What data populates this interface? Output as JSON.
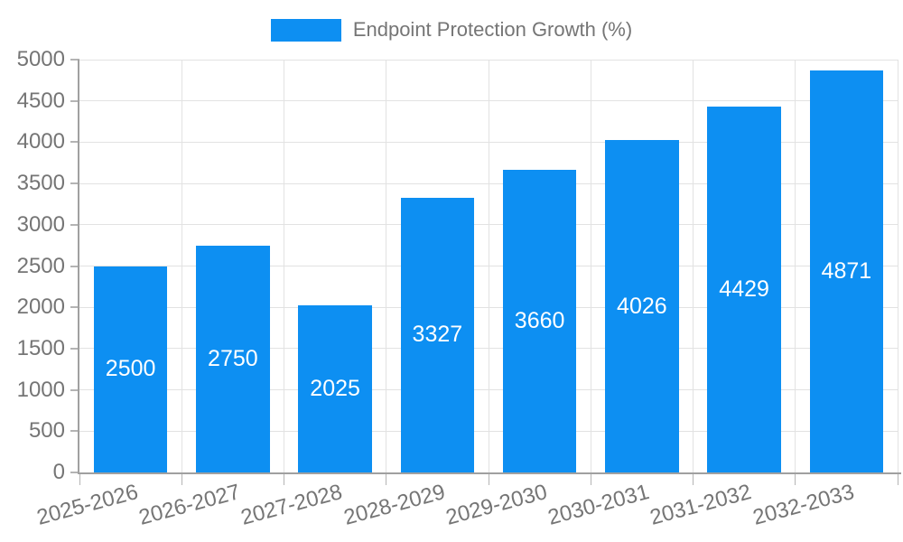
{
  "chart_data": {
    "type": "bar",
    "title": "",
    "legend_label": "Endpoint Protection Growth (%)",
    "legend_position": "top",
    "categories": [
      "2025-2026",
      "2026-2027",
      "2027-2028",
      "2028-2029",
      "2029-2030",
      "2030-2031",
      "2031-2032",
      "2032-2033"
    ],
    "values": [
      2500,
      2750,
      2025,
      3327,
      3660,
      4026,
      4429,
      4871
    ],
    "xlabel": "",
    "ylabel": "",
    "ylim": [
      0,
      5000
    ],
    "ytick_step": 500,
    "ytick_labels": [
      "0",
      "500",
      "1000",
      "1500",
      "2000",
      "2500",
      "3000",
      "3500",
      "4000",
      "4500",
      "5000"
    ],
    "grid": true,
    "x_tick_rotation_deg": -15,
    "colors": {
      "bar": "#0d8ff2",
      "bar_value_label": "#ffffff",
      "grid": "#e2e2e2",
      "axis": "#a0a0a0",
      "tick": "#b4b4b4",
      "tick_label": "#757575",
      "legend_text": "#757575",
      "background": "#ffffff"
    }
  }
}
